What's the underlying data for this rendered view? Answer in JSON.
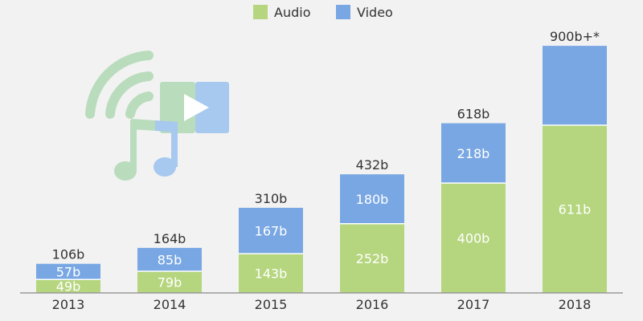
{
  "colors": {
    "audio": "#b5d67e",
    "video": "#79a7e3",
    "icon_green": "#b9dcbc",
    "icon_blue": "#a7c8ef",
    "axis": "#999999"
  },
  "illustration": {
    "icons": [
      "wifi-icon",
      "video-play-icon",
      "music-note-icon"
    ]
  },
  "chart_data": {
    "type": "bar",
    "stacked": true,
    "categories": [
      "2013",
      "2014",
      "2015",
      "2016",
      "2017",
      "2018"
    ],
    "series": [
      {
        "name": "Audio",
        "values": [
          49,
          79,
          143,
          252,
          400,
          611
        ],
        "labels": [
          "49b",
          "79b",
          "143b",
          "252b",
          "400b",
          "611b"
        ]
      },
      {
        "name": "Video",
        "values": [
          57,
          85,
          167,
          180,
          218,
          289
        ],
        "labels": [
          "57b",
          "85b",
          "167b",
          "180b",
          "218b",
          ""
        ]
      }
    ],
    "totals": [
      "106b",
      "164b",
      "310b",
      "432b",
      "618b",
      "900b+*"
    ],
    "legend_position": "top-center",
    "ylim": [
      0,
      950
    ],
    "grid": false
  }
}
